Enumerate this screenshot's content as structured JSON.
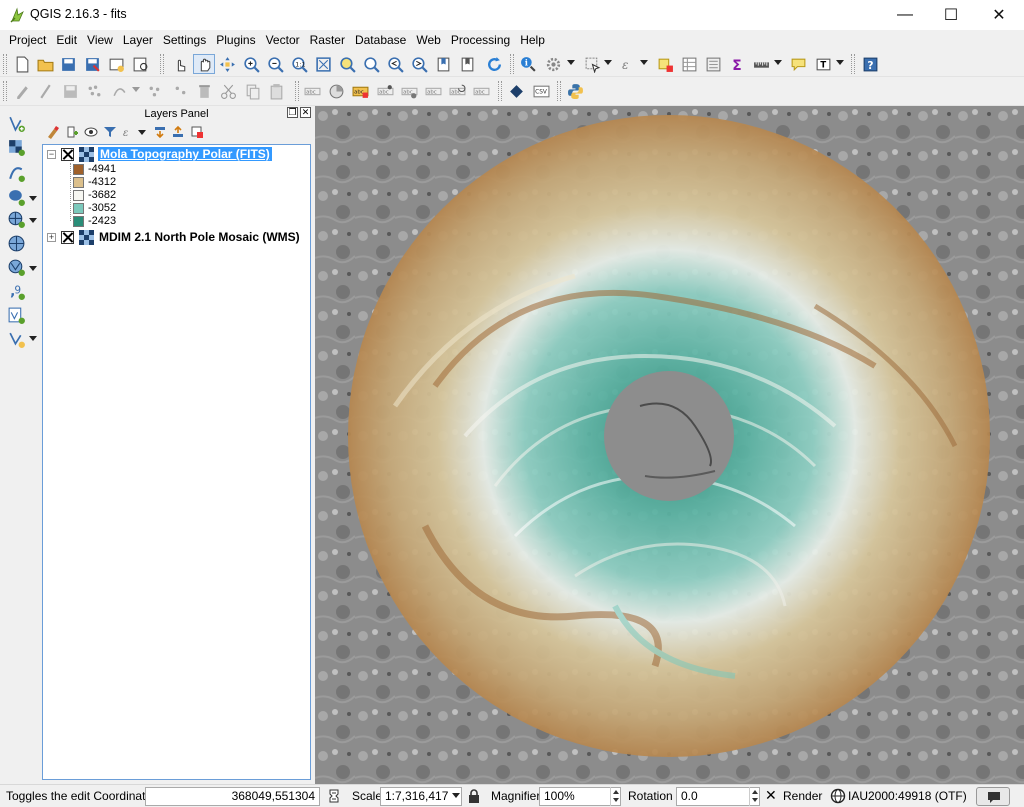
{
  "window": {
    "title": "QGIS 2.16.3 - fits",
    "minimize": "—",
    "maximize": "☐",
    "close": "✕"
  },
  "menu": [
    "Project",
    "Edit",
    "View",
    "Layer",
    "Settings",
    "Plugins",
    "Vector",
    "Raster",
    "Database",
    "Web",
    "Processing",
    "Help"
  ],
  "layers_panel": {
    "title": "Layers Panel",
    "layers": [
      {
        "name": "Mola Topography Polar (FITS)",
        "visible": true,
        "selected": true,
        "expanded": true,
        "legend": [
          {
            "label": "-4941",
            "color": "#a0612b"
          },
          {
            "label": "-4312",
            "color": "#dcc08c"
          },
          {
            "label": "-3682",
            "color": "#f7f7f2"
          },
          {
            "label": "-3052",
            "color": "#7cc9bc"
          },
          {
            "label": "-2423",
            "color": "#2a8d78"
          }
        ]
      },
      {
        "name": "MDIM 2.1 North Pole Mosaic (WMS)",
        "visible": true,
        "selected": false,
        "expanded": false
      }
    ]
  },
  "statusbar": {
    "message": "Toggles the edit Coordinate",
    "coordinate": "368049,551304",
    "scale_label": "Scale",
    "scale_value": "1:7,316,417",
    "magnifier_label": "Magnifier",
    "magnifier_value": "100%",
    "rotation_label": "Rotation",
    "rotation_value": "0.0",
    "render_label": "Render",
    "render_checked": true,
    "crs": "IAU2000:49918 (OTF)"
  },
  "colors": {
    "selection": "#3399ff",
    "panel_border": "#6a9dd8",
    "map_outer": "#b5a57e",
    "map_ice": "#7fcabd",
    "map_center": "#8d8d8d"
  }
}
